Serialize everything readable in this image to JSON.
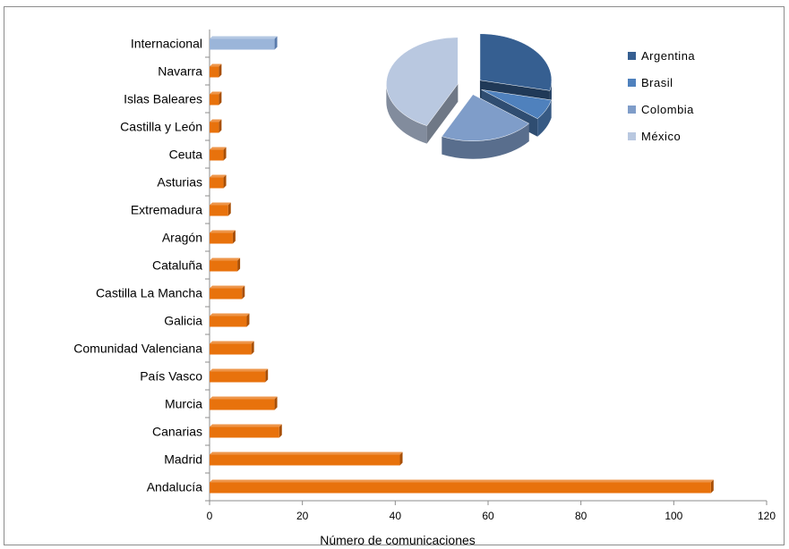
{
  "chart_data": [
    {
      "type": "bar",
      "orientation": "horizontal",
      "categories": [
        "Andalucía",
        "Madrid",
        "Canarias",
        "Murcia",
        "País Vasco",
        "Comunidad Valenciana",
        "Galicia",
        "Castilla La Mancha",
        "Cataluña",
        "Aragón",
        "Extremadura",
        "Asturias",
        "Ceuta",
        "Castilla y León",
        "Islas Baleares",
        "Navarra",
        "Internacional"
      ],
      "values": [
        108,
        41,
        15,
        14,
        12,
        9,
        8,
        7,
        6,
        5,
        4,
        3,
        3,
        2,
        2,
        2,
        14
      ],
      "xlabel": "Número de comunicaciones",
      "ylabel": "",
      "xlim": [
        0,
        120
      ],
      "xticks": [
        0,
        20,
        40,
        60,
        80,
        100,
        120
      ],
      "grid": false,
      "colors": {
        "bar": "#e8720c",
        "bar_side": "#a84f06",
        "highlight": "#9bb5d9",
        "highlight_side": "#5a7bab"
      }
    },
    {
      "type": "pie",
      "style": "3d-exploded",
      "labels": [
        "Argentina",
        "Brasil",
        "Colombia",
        "México"
      ],
      "values": [
        4,
        1,
        3,
        6
      ],
      "colors": [
        "#365f91",
        "#4f81bd",
        "#7f9dc9",
        "#b9c8e0"
      ],
      "legend": "right"
    }
  ]
}
